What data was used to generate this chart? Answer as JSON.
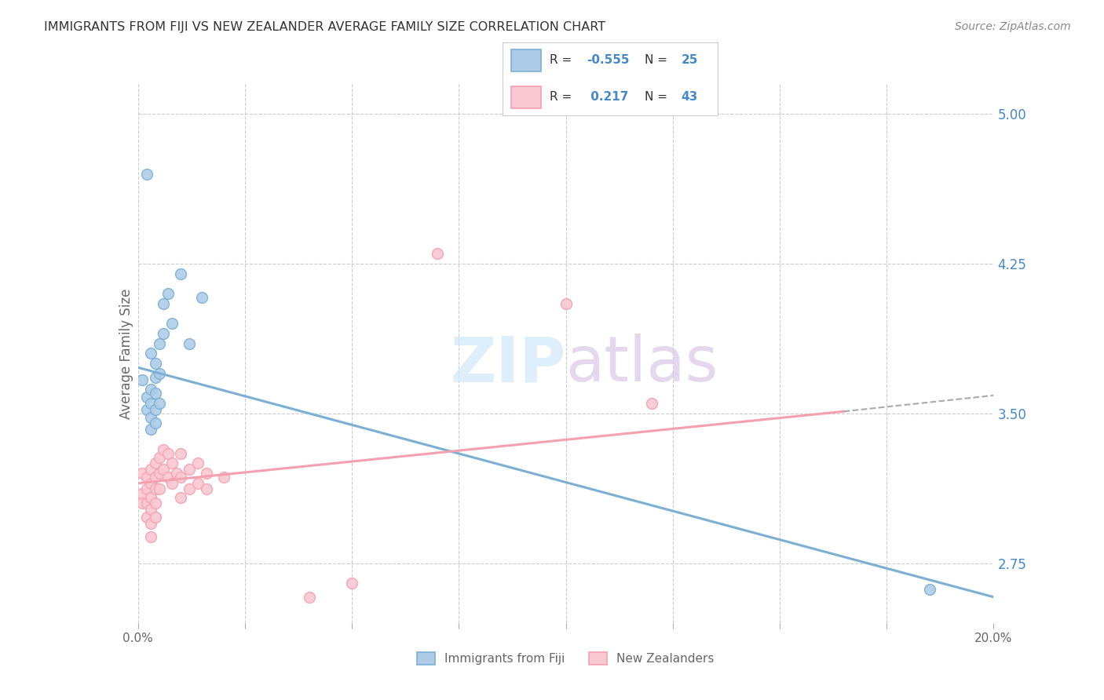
{
  "title": "IMMIGRANTS FROM FIJI VS NEW ZEALANDER AVERAGE FAMILY SIZE CORRELATION CHART",
  "source": "Source: ZipAtlas.com",
  "ylabel": "Average Family Size",
  "xlim": [
    0.0,
    0.2
  ],
  "ylim": [
    2.45,
    5.15
  ],
  "yticks_right": [
    2.75,
    3.5,
    4.25,
    5.0
  ],
  "xticks": [
    0.0,
    0.025,
    0.05,
    0.075,
    0.1,
    0.125,
    0.15,
    0.175,
    0.2
  ],
  "xticklabels": [
    "0.0%",
    "",
    "",
    "",
    "",
    "",
    "",
    "",
    "20.0%"
  ],
  "fiji_color": "#7bafd4",
  "fiji_color_fill": "#aecce8",
  "nz_color": "#f4a0b0",
  "nz_color_fill": "#f9c8d2",
  "fiji_R": -0.555,
  "fiji_N": 25,
  "nz_R": 0.217,
  "nz_N": 43,
  "fiji_scatter": [
    [
      0.001,
      3.67
    ],
    [
      0.002,
      3.58
    ],
    [
      0.002,
      3.52
    ],
    [
      0.003,
      3.8
    ],
    [
      0.003,
      3.62
    ],
    [
      0.003,
      3.55
    ],
    [
      0.003,
      3.48
    ],
    [
      0.003,
      3.42
    ],
    [
      0.004,
      3.75
    ],
    [
      0.004,
      3.68
    ],
    [
      0.004,
      3.6
    ],
    [
      0.004,
      3.52
    ],
    [
      0.004,
      3.45
    ],
    [
      0.005,
      3.85
    ],
    [
      0.005,
      3.7
    ],
    [
      0.005,
      3.55
    ],
    [
      0.006,
      4.05
    ],
    [
      0.006,
      3.9
    ],
    [
      0.007,
      4.1
    ],
    [
      0.008,
      3.95
    ],
    [
      0.01,
      4.2
    ],
    [
      0.012,
      3.85
    ],
    [
      0.015,
      4.08
    ],
    [
      0.185,
      2.62
    ],
    [
      0.002,
      4.7
    ]
  ],
  "nz_scatter": [
    [
      0.001,
      3.2
    ],
    [
      0.001,
      3.1
    ],
    [
      0.001,
      3.05
    ],
    [
      0.002,
      3.18
    ],
    [
      0.002,
      3.12
    ],
    [
      0.002,
      3.05
    ],
    [
      0.002,
      2.98
    ],
    [
      0.003,
      3.22
    ],
    [
      0.003,
      3.15
    ],
    [
      0.003,
      3.08
    ],
    [
      0.003,
      3.02
    ],
    [
      0.003,
      2.95
    ],
    [
      0.003,
      2.88
    ],
    [
      0.004,
      3.25
    ],
    [
      0.004,
      3.18
    ],
    [
      0.004,
      3.12
    ],
    [
      0.004,
      3.05
    ],
    [
      0.004,
      2.98
    ],
    [
      0.005,
      3.28
    ],
    [
      0.005,
      3.2
    ],
    [
      0.005,
      3.12
    ],
    [
      0.006,
      3.32
    ],
    [
      0.006,
      3.22
    ],
    [
      0.007,
      3.3
    ],
    [
      0.007,
      3.18
    ],
    [
      0.008,
      3.25
    ],
    [
      0.008,
      3.15
    ],
    [
      0.009,
      3.2
    ],
    [
      0.01,
      3.3
    ],
    [
      0.01,
      3.18
    ],
    [
      0.01,
      3.08
    ],
    [
      0.012,
      3.22
    ],
    [
      0.012,
      3.12
    ],
    [
      0.014,
      3.25
    ],
    [
      0.014,
      3.15
    ],
    [
      0.016,
      3.2
    ],
    [
      0.016,
      3.12
    ],
    [
      0.02,
      3.18
    ],
    [
      0.07,
      4.3
    ],
    [
      0.1,
      4.05
    ],
    [
      0.12,
      3.55
    ],
    [
      0.05,
      2.65
    ],
    [
      0.04,
      2.58
    ]
  ],
  "fiji_line": {
    "x0": 0.0,
    "y0": 3.73,
    "x1": 0.2,
    "y1": 2.58
  },
  "nz_line": {
    "x0": 0.0,
    "y0": 3.15,
    "x1": 0.165,
    "y1": 3.51
  },
  "nz_dash_line": {
    "x0": 0.165,
    "y0": 3.51,
    "x1": 0.2,
    "y1": 3.59
  },
  "legend_fiji_label": "Immigrants from Fiji",
  "legend_nz_label": "New Zealanders",
  "watermark": "ZIPatlas",
  "background_color": "#ffffff",
  "grid_color": "#cccccc",
  "title_color": "#333333",
  "axis_label_color": "#666666",
  "right_tick_color": "#4488cc",
  "marker_size": 100
}
